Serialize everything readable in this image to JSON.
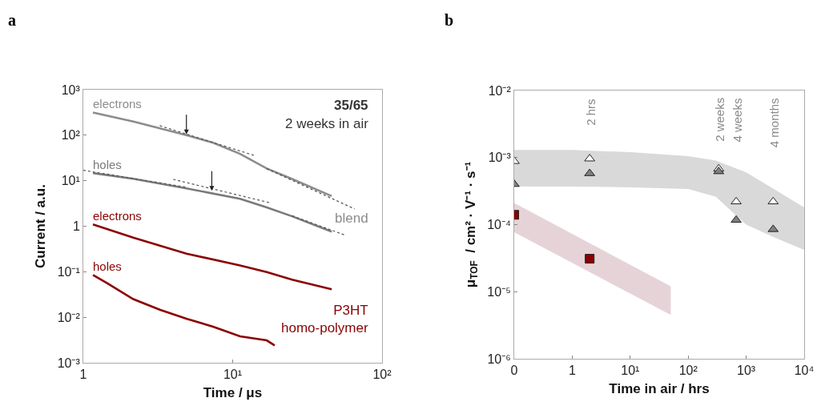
{
  "chart_data": [
    {
      "type": "line",
      "title": "a",
      "xlabel": "Time / μs",
      "ylabel": "Current / a.u.",
      "log": "xy",
      "legend": false,
      "grid": false,
      "marker": "none",
      "xlim": [
        1,
        100
      ],
      "xticks": [
        1,
        {
          "value": 10,
          "label": "10¹"
        },
        {
          "value": 100,
          "label": "10²"
        }
      ],
      "ylim": [
        0.001,
        1000
      ],
      "yticks": [
        {
          "value": 0.001,
          "label": "10⁻³"
        },
        {
          "value": 0.01,
          "label": "10⁻²"
        },
        {
          "value": 0.1,
          "label": "10⁻¹"
        },
        1,
        {
          "value": 10,
          "label": "10¹"
        },
        {
          "value": 100,
          "label": "10²"
        },
        {
          "value": 1000,
          "label": "10³"
        }
      ],
      "annotations": [
        "35/65",
        "2 weeks in air",
        "blend",
        "P3HT\nhomo-polymer"
      ],
      "series": [
        {
          "name": "electrons",
          "color": "#8c8c8c",
          "x": [
            1.16,
            2.16,
            4.9,
            7.4,
            11.2,
            16.9,
            25,
            46
          ],
          "values": [
            316,
            200,
            100,
            68,
            39,
            18.6,
            10.9,
            4.6
          ]
        },
        {
          "name": "holes",
          "color": "#7a7a7a",
          "x": [
            1.16,
            2.16,
            4.9,
            11.2,
            16.9,
            25,
            46
          ],
          "values": [
            14.7,
            11,
            6.8,
            4.0,
            2.6,
            1.65,
            0.76
          ]
        },
        {
          "name": "electrons",
          "color": "#8b0000",
          "x": [
            1.16,
            2.16,
            4.9,
            11.2,
            16.9,
            25,
            46
          ],
          "values": [
            1.1,
            0.56,
            0.25,
            0.137,
            0.098,
            0.067,
            0.041
          ]
        },
        {
          "name": "holes",
          "color": "#8b0000",
          "x": [
            1.16,
            1.43,
            2.16,
            3.25,
            4.9,
            7.4,
            11.2,
            16.9,
            19.1
          ],
          "values": [
            0.085,
            0.057,
            0.025,
            0.0147,
            0.0093,
            0.0062,
            0.0038,
            0.0031,
            0.0024
          ]
        },
        {
          "color": "#555555",
          "line_style": "dotted",
          "x": [
            3.25,
            14.3
          ],
          "values": [
            162,
            35
          ]
        },
        {
          "color": "#555555",
          "line_style": "dotted",
          "x": [
            16.9,
            65.5
          ],
          "values": [
            18.4,
            2.4
          ]
        },
        {
          "color": "#555555",
          "line_style": "dotted",
          "x": [
            1,
            4.9
          ],
          "values": [
            17,
            7.2
          ]
        },
        {
          "color": "#555555",
          "line_style": "dotted",
          "x": [
            4.0,
            17.6
          ],
          "values": [
            10.7,
            3.3
          ]
        },
        {
          "color": "#555555",
          "line_style": "dotted",
          "x": [
            25,
            55.6
          ],
          "values": [
            1.7,
            0.65
          ]
        }
      ]
    },
    {
      "type": "scatter",
      "title": "b",
      "xlabel": "Time in air / hrs",
      "ylabel": "μ$_{TOF}$  / cm² · V⁻¹ · s⁻¹",
      "log": "xy",
      "legend": false,
      "grid": false,
      "xlim": [
        0.1,
        10000
      ],
      "xticks": [
        {
          "value": 0.1,
          "label": "0"
        },
        1,
        {
          "value": 10,
          "label": "10¹"
        },
        {
          "value": 100,
          "label": "10²"
        },
        {
          "value": 1000,
          "label": "10³"
        },
        {
          "value": 10000,
          "label": "10⁴"
        }
      ],
      "ylim": [
        1e-06,
        0.01
      ],
      "yticks": [
        {
          "value": 1e-06,
          "label": "10⁻⁶"
        },
        {
          "value": 1e-05,
          "label": "10⁻⁵"
        },
        {
          "value": 0.0001,
          "label": "10⁻⁴"
        },
        {
          "value": 0.001,
          "label": "10⁻³"
        },
        {
          "value": 0.01,
          "label": "10⁻²"
        }
      ],
      "annotations": [
        "2 hrs",
        "2 weeks",
        "4 weeks",
        "4 months"
      ],
      "series": [
        {
          "type": "area",
          "color": "#d9d9d9",
          "x": [
            0.1,
            1,
            10,
            100,
            300,
            1000,
            3000,
            10000
          ],
          "lower": [
            0.00037,
            0.00037,
            0.00036,
            0.00034,
            0.00026,
            0.0001,
            6.5e-05,
            4.2e-05
          ],
          "upper": [
            0.0013,
            0.0013,
            0.0012,
            0.00105,
            0.0009,
            0.0006,
            0.00034,
            0.00018
          ],
          "values": [
            null,
            null,
            null,
            null,
            null,
            null,
            null,
            null
          ]
        },
        {
          "type": "area",
          "color": "#e6d3d8",
          "x": [
            0.1,
            50
          ],
          "lower": [
            7.7e-05,
            4.5e-06
          ],
          "upper": [
            0.00021,
            1.2e-05
          ],
          "values": [
            null,
            null
          ]
        },
        {
          "color": "#ffffff",
          "marker": "triangle",
          "x": [
            0.1,
            2,
            336,
            672,
            2920
          ],
          "values": [
            0.00088,
            0.00096,
            0.00068,
            0.00022,
            0.00022
          ]
        },
        {
          "color": "#808080",
          "marker": "triangle",
          "x": [
            0.1,
            2,
            336,
            672,
            2920
          ],
          "values": [
            0.0004,
            0.00058,
            0.00062,
            0.000117,
            8.5e-05
          ]
        },
        {
          "color": "#8b0000",
          "marker": "square",
          "x": [
            0.1,
            2
          ],
          "values": [
            0.00014,
            3.1e-05
          ]
        }
      ]
    }
  ]
}
